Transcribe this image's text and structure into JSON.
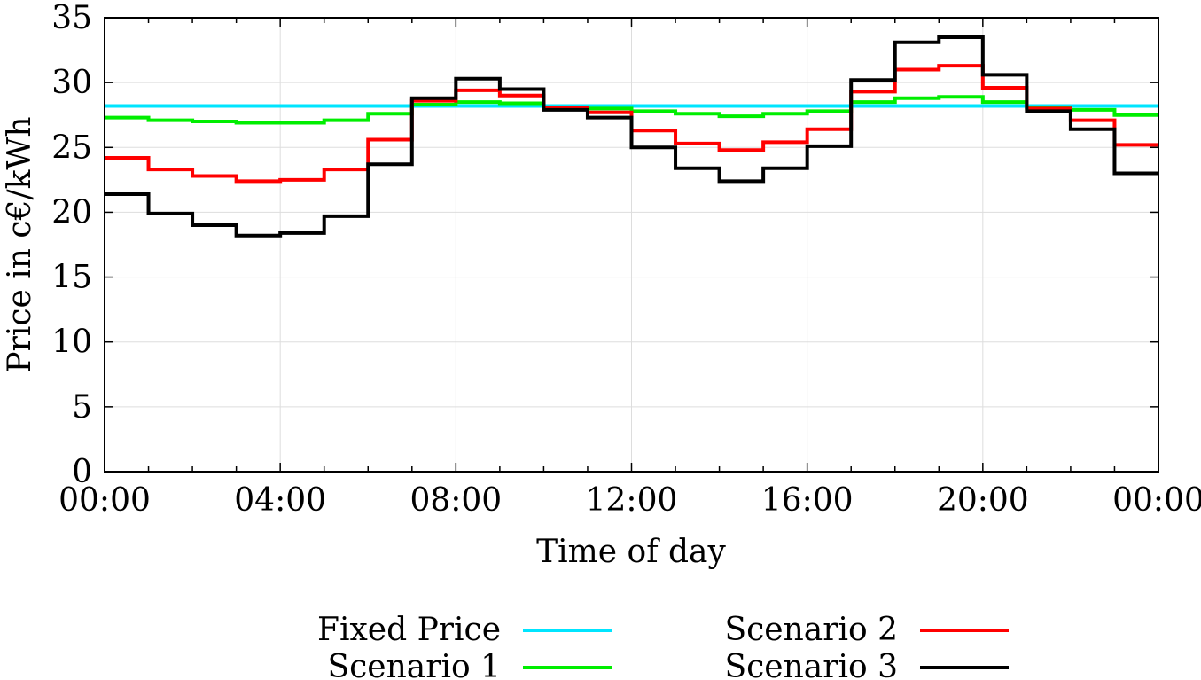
{
  "chart_data": {
    "type": "line",
    "step": true,
    "title": "",
    "xlabel": "Time of day",
    "ylabel": "Price in c€/kWh",
    "xlim": [
      0,
      24
    ],
    "ylim": [
      0,
      35
    ],
    "grid": true,
    "legend_position": "bottom",
    "x_ticks": [
      {
        "value": 0,
        "label": "00:00"
      },
      {
        "value": 4,
        "label": "04:00"
      },
      {
        "value": 8,
        "label": "08:00"
      },
      {
        "value": 12,
        "label": "12:00"
      },
      {
        "value": 16,
        "label": "16:00"
      },
      {
        "value": 20,
        "label": "20:00"
      },
      {
        "value": 24,
        "label": "00:00"
      }
    ],
    "y_ticks": [
      {
        "value": 0,
        "label": "0"
      },
      {
        "value": 5,
        "label": "5"
      },
      {
        "value": 10,
        "label": "10"
      },
      {
        "value": 15,
        "label": "15"
      },
      {
        "value": 20,
        "label": "20"
      },
      {
        "value": 25,
        "label": "25"
      },
      {
        "value": 30,
        "label": "30"
      },
      {
        "value": 35,
        "label": "35"
      }
    ],
    "x": [
      0,
      1,
      2,
      3,
      4,
      5,
      6,
      7,
      8,
      9,
      10,
      11,
      12,
      13,
      14,
      15,
      16,
      17,
      18,
      19,
      20,
      21,
      22,
      23
    ],
    "series": [
      {
        "name": "Fixed Price",
        "color": "#00e5ff",
        "values": [
          28.2,
          28.2,
          28.2,
          28.2,
          28.2,
          28.2,
          28.2,
          28.2,
          28.2,
          28.2,
          28.2,
          28.2,
          28.2,
          28.2,
          28.2,
          28.2,
          28.2,
          28.2,
          28.2,
          28.2,
          28.2,
          28.2,
          28.2,
          28.2
        ]
      },
      {
        "name": "Scenario 1",
        "color": "#00ee00",
        "values": [
          27.3,
          27.1,
          27.0,
          26.9,
          26.9,
          27.1,
          27.6,
          28.3,
          28.5,
          28.4,
          28.1,
          28.0,
          27.8,
          27.6,
          27.4,
          27.6,
          27.8,
          28.5,
          28.8,
          28.9,
          28.5,
          28.1,
          27.9,
          27.5
        ]
      },
      {
        "name": "Scenario 2",
        "color": "#ff0000",
        "values": [
          24.2,
          23.3,
          22.8,
          22.4,
          22.5,
          23.3,
          25.6,
          28.6,
          29.4,
          29.0,
          28.1,
          27.7,
          26.3,
          25.3,
          24.8,
          25.4,
          26.4,
          29.3,
          31.0,
          31.3,
          29.6,
          28.0,
          27.1,
          25.2
        ]
      },
      {
        "name": "Scenario 3",
        "color": "#000000",
        "values": [
          21.4,
          19.9,
          19.0,
          18.2,
          18.4,
          19.7,
          23.7,
          28.8,
          30.3,
          29.5,
          27.9,
          27.3,
          25.0,
          23.4,
          22.4,
          23.4,
          25.1,
          30.2,
          33.1,
          33.5,
          30.6,
          27.8,
          26.4,
          23.0
        ]
      }
    ]
  }
}
